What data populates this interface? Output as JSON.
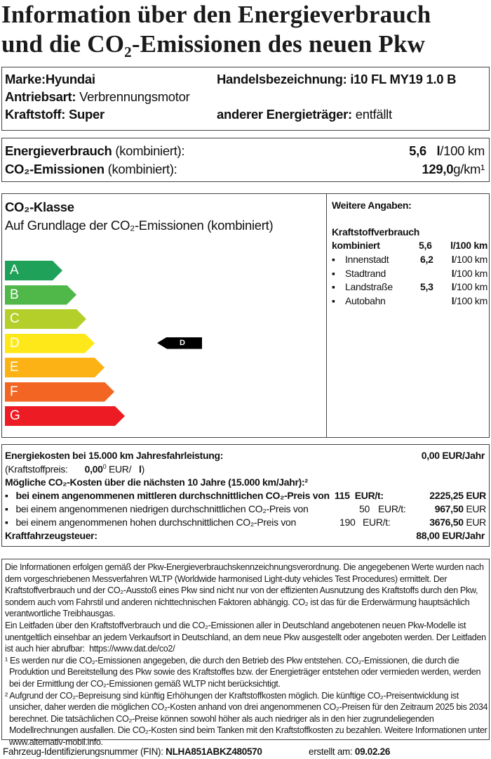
{
  "title": {
    "line1": "Information über den Energieverbrauch",
    "line2": "und die CO₂-Emissionen des neuen Pkw"
  },
  "vehicle": {
    "brand_label": "Marke:",
    "brand": "Hyundai",
    "trade_name_label": "Handelsbezeichnung:",
    "trade_name": "i10 FL MY19 1.0 B",
    "drive_label": "Antriebsart:",
    "drive": "Verbrennungsmotor",
    "fuel_label": "Kraftstoff:",
    "fuel": "Super",
    "other_energy_label": "anderer Energieträger:",
    "other_energy": "entfällt"
  },
  "consumption": {
    "energy_label": "Energieverbrauch",
    "energy_suffix": "(kombiniert):",
    "energy_value": "5,6",
    "energy_unit_bold": "l",
    "energy_unit": "/100 km",
    "co2_label": "CO₂-Emissionen",
    "co2_suffix": "(kombiniert):",
    "co2_value": "129,0",
    "co2_unit": "g/km¹"
  },
  "co2_class": {
    "heading": "CO₂-Klasse",
    "subheading": "Auf Grundlage der CO₂-Emissionen (kombiniert)",
    "classes": [
      {
        "label": "A",
        "color": "#1fa15a"
      },
      {
        "label": "B",
        "color": "#4fb848"
      },
      {
        "label": "C",
        "color": "#b5cf2a"
      },
      {
        "label": "D",
        "color": "#ffe81a"
      },
      {
        "label": "E",
        "color": "#fcb115"
      },
      {
        "label": "F",
        "color": "#f26522"
      },
      {
        "label": "G",
        "color": "#ed1c24"
      }
    ],
    "current": "D"
  },
  "further": {
    "heading": "Weitere Angaben:",
    "fuel_heading": "Kraftstoffverbrauch",
    "combined_label": "kombiniert",
    "combined_value": "5,6",
    "combined_unit": "l/100 km",
    "items": [
      {
        "label": "Innenstadt",
        "value": "6,2",
        "unit_bold": "l",
        "unit": "/100 km"
      },
      {
        "label": "Stadtrand",
        "value": "",
        "unit_bold": "l",
        "unit": "/100 km"
      },
      {
        "label": "Landstraße",
        "value": "5,3",
        "unit_bold": "l",
        "unit": "/100 km"
      },
      {
        "label": "Autobahn",
        "value": "",
        "unit_bold": "l",
        "unit": "/100 km"
      }
    ]
  },
  "costs": {
    "energy_label": "Energiekosten bei 15.000 km Jahresfahrleistung:",
    "energy_value": "0,00 EUR/Jahr",
    "fuel_price_label": "(Kraftstoffpreis:",
    "fuel_price": "0,00",
    "fuel_price_sup": "0",
    "fuel_price_unit": "EUR/",
    "fuel_price_unit_bold": "l",
    "fuel_price_close": ")",
    "co2_heading": "Mögliche CO₂-Kosten über die nächsten 10 Jahre (15.000 km/Jahr):²",
    "mid_label": "bei einem angenommenen mittleren durchschnittlichen CO₂-Preis von",
    "mid_price": "115",
    "mid_unit": "EUR/t:",
    "mid_value": "2225,25 EUR",
    "low_label": "bei einem angenommenen niedrigen durchschnittlichen CO₂-Preis von",
    "low_price": "50",
    "low_unit": "EUR/t:",
    "low_value": "967,50",
    "low_cur": "EUR",
    "high_label": "bei einem angenommenen hohen durchschnittlichen CO₂-Preis von",
    "high_price": "190",
    "high_unit": "EUR/t:",
    "high_value": "3676,50",
    "high_cur": "EUR",
    "tax_label": "Kraftfahrzeugsteuer:",
    "tax_value": "88,00 EUR/Jahr"
  },
  "notes": {
    "p1": "Die Informationen erfolgen gemäß der Pkw-Energieverbrauchskennzeichnungsverordnung. Die angegebenen Werte wurden nach dem vorgeschriebenen Messverfahren WLTP (Worldwide harmonised Light-duty vehicles Test Procedures) ermittelt. Der Kraftstoffverbrauch und der CO₂-Ausstoß eines Pkw sind nicht nur von der effizienten Ausnutzung des Kraftstoffs durch den Pkw, sondern auch vom Fahrstil und anderen nichttechnischen Faktoren abhängig. CO₂ ist das für die Erderwärmung hauptsächlich verantwortliche Treibhausgas.",
    "p2": "Ein Leitfaden über den Kraftstoffverbrauch und die CO₂-Emissionen aller in Deutschland angebotenen neuen Pkw-Modelle ist unentgeltlich einsehbar an jedem Verkaufsort in Deutschland, an dem neue Pkw ausgestellt oder angeboten werden. Der Leitfaden ist auch hier abrufbar:",
    "p2_link": "https://www.dat.de/co2/",
    "fn1": "¹ Es werden nur die CO₂-Emissionen angegeben, die durch den Betrieb des Pkw entstehen. CO₂-Emissionen, die durch die Produktion und Bereitstellung des Pkw sowie des Kraftstoffes bzw. der Energieträger entstehen oder vermieden werden, werden bei der Ermittlung der CO₂-Emissionen gemäß WLTP nicht berücksichtigt.",
    "fn2": "² Aufgrund der CO₂-Bepreisung sind künftig Erhöhungen der Kraftstoffkosten möglich. Die künftige CO₂-Preisentwicklung ist unsicher, daher werden die möglichen CO₂-Kosten anhand von drei angenommenen CO₂-Preisen für den Zeitraum  2025  bis  2034   berechnet. Die tatsächlichen CO₂-Preise können sowohl höher als auch niedriger als in den hier zugrundeliegenden Modellrechnungen ausfallen. Die CO₂-Kosten sind beim Tanken mit den Kraftstoffkosten zu bezahlen. Weitere Informationen unter www.alternativ-mobil.info."
  },
  "footer": {
    "fin_label": "Fahrzeug-Identifizierungsnummer (FIN):",
    "fin": "NLHA851ABKZ480570",
    "created_label": "erstellt am:",
    "created": "09.02.26"
  }
}
